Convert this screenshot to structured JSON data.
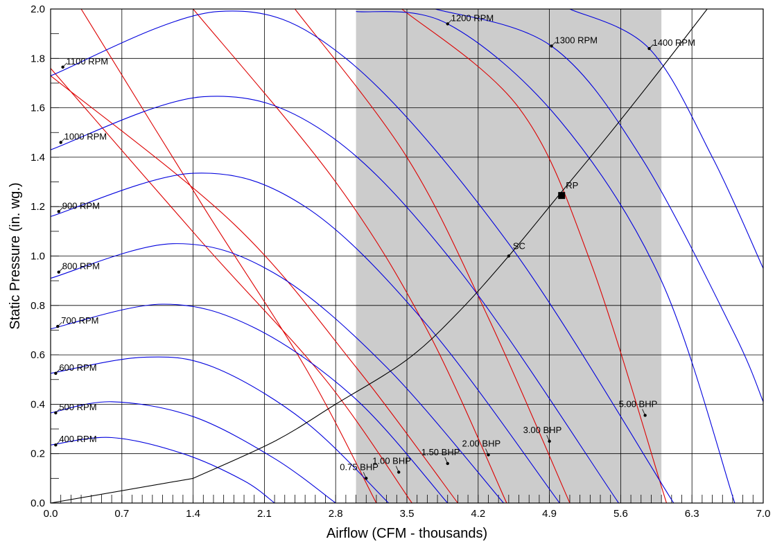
{
  "chart_data": {
    "type": "line",
    "xlabel": "Airflow (CFM - thousands)",
    "ylabel": "Static Pressure (in. wg.)",
    "xlim": [
      0,
      7
    ],
    "ylim": [
      0,
      2
    ],
    "x_ticks": [
      "0.0",
      "0.7",
      "1.4",
      "2.1",
      "2.8",
      "3.5",
      "4.2",
      "4.9",
      "5.6",
      "6.3",
      "7.0"
    ],
    "y_ticks": [
      "0.0",
      "0.2",
      "0.4",
      "0.6",
      "0.8",
      "1.0",
      "1.2",
      "1.4",
      "1.6",
      "1.8",
      "2.0"
    ],
    "grid": true,
    "shaded_region": {
      "x": [
        3.0,
        6.0
      ],
      "color": "#cccccc"
    },
    "colors": {
      "rpm_curves": "#0000dd",
      "bhp_curves": "#dd0000",
      "system_curve": "#000000"
    },
    "rpm_series": [
      {
        "name": "400 RPM",
        "label_at": [
          0.05,
          0.235
        ],
        "x": [
          0,
          0.6,
          1.3,
          1.9,
          2.2
        ],
        "y": [
          0.235,
          0.265,
          0.2,
          0.09,
          0.0
        ]
      },
      {
        "name": "500 RPM",
        "label_at": [
          0.05,
          0.365
        ],
        "x": [
          0,
          0.6,
          1.4,
          2.2,
          2.8
        ],
        "y": [
          0.365,
          0.41,
          0.35,
          0.18,
          0.0
        ]
      },
      {
        "name": "600 RPM",
        "label_at": [
          0.05,
          0.525
        ],
        "x": [
          0,
          0.9,
          1.6,
          2.5,
          3.32
        ],
        "y": [
          0.525,
          0.59,
          0.55,
          0.33,
          0.0
        ]
      },
      {
        "name": "700 RPM",
        "label_at": [
          0.07,
          0.715
        ],
        "x": [
          0,
          1.1,
          2.0,
          3.0,
          3.9
        ],
        "y": [
          0.705,
          0.805,
          0.71,
          0.42,
          0.0
        ]
      },
      {
        "name": "800 RPM",
        "label_at": [
          0.08,
          0.935
        ],
        "x": [
          0,
          1.2,
          2.2,
          3.3,
          4.45
        ],
        "y": [
          0.91,
          1.05,
          0.93,
          0.55,
          0.0
        ]
      },
      {
        "name": "900 RPM",
        "label_at": [
          0.08,
          1.18
        ],
        "x": [
          0,
          1.4,
          2.5,
          3.7,
          5.0
        ],
        "y": [
          1.16,
          1.335,
          1.2,
          0.72,
          0.0
        ]
      },
      {
        "name": "1000 RPM",
        "label_at": [
          0.1,
          1.46
        ],
        "x": [
          0,
          1.5,
          2.7,
          4.0,
          5.58
        ],
        "y": [
          1.43,
          1.645,
          1.5,
          0.95,
          0.0
        ]
      },
      {
        "name": "1100 RPM",
        "label_at": [
          0.12,
          1.765
        ],
        "x": [
          0,
          1.65,
          2.9,
          4.5,
          6.12
        ],
        "y": [
          1.73,
          1.99,
          1.8,
          1.05,
          0.0
        ]
      },
      {
        "name": "1200 RPM",
        "label_at": [
          3.9,
          1.94
        ],
        "x": [
          3.0,
          3.9,
          5.0,
          6.0,
          6.72
        ],
        "y": [
          1.99,
          1.94,
          1.55,
          0.9,
          0.0
        ]
      },
      {
        "name": "1300 RPM",
        "label_at": [
          4.92,
          1.85
        ],
        "x": [
          3.78,
          4.92,
          5.8,
          6.7,
          7.0
        ],
        "y": [
          2.0,
          1.85,
          1.4,
          0.7,
          0.41
        ]
      },
      {
        "name": "1400 RPM",
        "label_at": [
          5.88,
          1.84
        ],
        "x": [
          5.1,
          5.88,
          6.5,
          7.0
        ],
        "y": [
          2.0,
          1.84,
          1.4,
          0.95
        ]
      }
    ],
    "bhp_series": [
      {
        "name": "0.75 BHP",
        "label_at": [
          3.1,
          0.1
        ],
        "x": [
          0.3,
          1.5,
          2.5,
          3.2
        ],
        "y": [
          2.0,
          1.2,
          0.55,
          0.0
        ]
      },
      {
        "name": "1.00 BHP",
        "label_at": [
          3.42,
          0.125
        ],
        "x": [
          0,
          1.5,
          2.7,
          3.55
        ],
        "y": [
          1.76,
          1.05,
          0.5,
          0.0
        ]
      },
      {
        "name": "1.50 BHP",
        "label_at": [
          3.9,
          0.16
        ],
        "x": [
          0,
          1.8,
          3.0,
          4.0
        ],
        "y": [
          1.73,
          1.13,
          0.55,
          0.0
        ]
      },
      {
        "name": "2.00 BHP",
        "label_at": [
          4.3,
          0.195
        ],
        "x": [
          1.4,
          2.8,
          3.7,
          4.48
        ],
        "y": [
          2.0,
          1.3,
          0.7,
          0.0
        ]
      },
      {
        "name": "3.00 BHP",
        "label_at": [
          4.9,
          0.25
        ],
        "x": [
          2.4,
          3.5,
          4.3,
          5.1
        ],
        "y": [
          2.0,
          1.4,
          0.75,
          0.0
        ]
      },
      {
        "name": "5.00 BHP",
        "label_at": [
          5.84,
          0.355
        ],
        "x": [
          3.45,
          4.6,
          5.3,
          6.05
        ],
        "y": [
          2.0,
          1.6,
          0.98,
          0.0
        ]
      }
    ],
    "system_curve": {
      "x": [
        0,
        1.4,
        2.2,
        2.8,
        3.5,
        4.0,
        4.5,
        5.0,
        5.5,
        6.0,
        6.45
      ],
      "y": [
        0,
        0.1,
        0.25,
        0.4,
        0.58,
        0.77,
        1.0,
        1.25,
        1.5,
        1.76,
        2.0
      ]
    },
    "annotations": [
      {
        "text": "SC",
        "x": 4.5,
        "y": 1.0,
        "marker": "dot"
      },
      {
        "text": "RP",
        "x": 5.02,
        "y": 1.245,
        "marker": "square"
      }
    ]
  }
}
